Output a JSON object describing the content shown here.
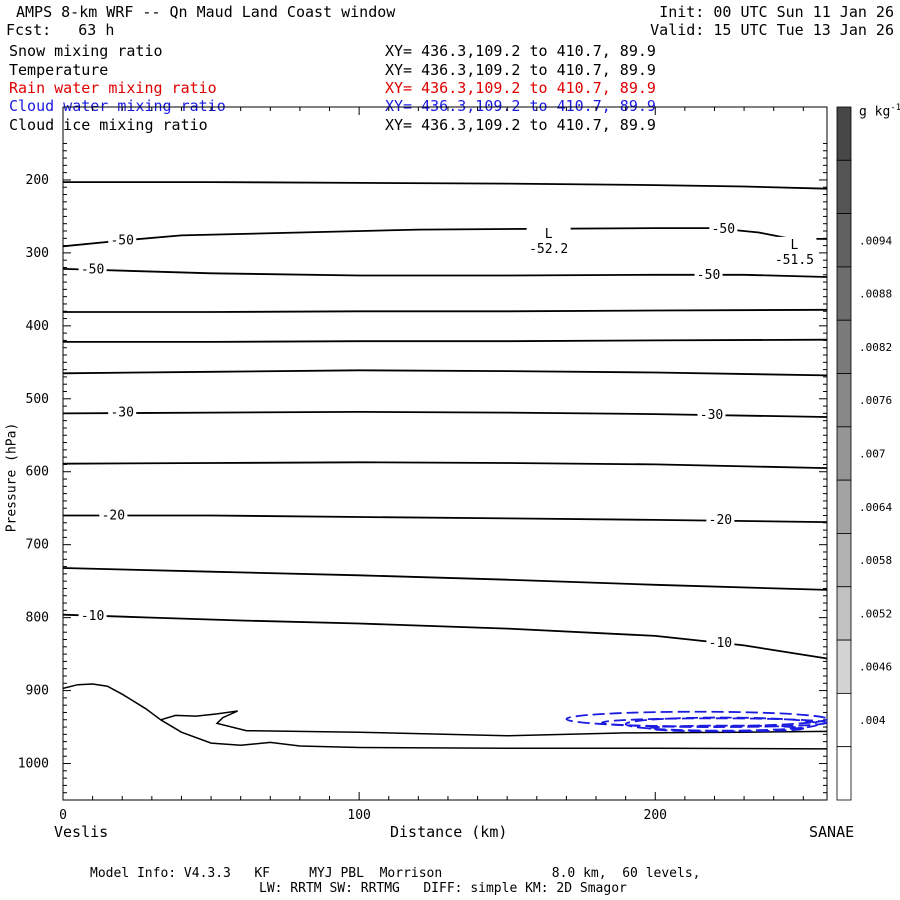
{
  "header": {
    "title": "AMPS 8-km WRF -- Qn Maud Land Coast window",
    "forecast": "Fcst:   63 h",
    "init": "Init: 00 UTC Sun 11 Jan 26",
    "valid": "Valid: 15 UTC Tue 13 Jan 26"
  },
  "fields": [
    {
      "name": "Snow mixing ratio",
      "xy": "XY= 436.3,109.2 to 410.7, 89.9",
      "color": "#000000"
    },
    {
      "name": "Temperature",
      "xy": "XY= 436.3,109.2 to 410.7, 89.9",
      "color": "#000000"
    },
    {
      "name": "Rain water mixing ratio",
      "xy": "XY= 436.3,109.2 to 410.7, 89.9",
      "color": "#e00000"
    },
    {
      "name": "Cloud water mixing ratio",
      "xy": "XY= 436.3,109.2 to 410.7, 89.9",
      "color": "#1a1ae0"
    },
    {
      "name": "Cloud ice mixing ratio",
      "xy": "XY= 436.3,109.2 to 410.7, 89.9",
      "color": "#000000"
    }
  ],
  "footer": {
    "model_line1": "Model Info: V4.3.3   KF     MYJ PBL  Morrison              8.0 km,  60 levels,",
    "model_line2": "LW: RRTM SW: RRTMG   DIFF: simple KM: 2D Smagor"
  },
  "chart_data": {
    "type": "contour",
    "xlabel": "Distance (km)",
    "ylabel": "Pressure (hPa)",
    "xlim": [
      0,
      258
    ],
    "ylim": [
      1050,
      100
    ],
    "x_ticks": [
      0,
      100,
      200
    ],
    "y_ticks": [
      200,
      300,
      400,
      500,
      600,
      700,
      800,
      900,
      1000
    ],
    "x_endpoints": {
      "left": "Veslis",
      "right": "SANAE"
    },
    "colorbar": {
      "unit": "g kg",
      "unit_exponent": "-1",
      "levels": [
        "",
        "",
        ".0094",
        ".0088",
        ".0082",
        ".0076",
        ".007",
        ".0064",
        ".0058",
        ".0052",
        ".0046",
        ".004",
        ""
      ],
      "colors": [
        "#474747",
        "#555555",
        "#616161",
        "#6d6d6d",
        "#7a7a7a",
        "#878787",
        "#959595",
        "#a3a3a3",
        "#b2b2b2",
        "#c2c2c2",
        "#d3d3d3",
        "#ffffff",
        "#ffffff"
      ]
    },
    "temperature_isotherms": [
      {
        "level": "",
        "points": [
          [
            0,
            203
          ],
          [
            50,
            203
          ],
          [
            100,
            204
          ],
          [
            150,
            205
          ],
          [
            200,
            207
          ],
          [
            230,
            209
          ],
          [
            258,
            212
          ]
        ]
      },
      {
        "level": "-50",
        "points": [
          [
            0,
            291
          ],
          [
            20,
            283
          ],
          [
            40,
            276
          ],
          [
            80,
            272
          ],
          [
            120,
            268
          ],
          [
            160,
            267
          ],
          [
            200,
            266
          ],
          [
            220,
            266
          ],
          [
            235,
            272
          ],
          [
            245,
            280
          ],
          [
            258,
            281
          ]
        ]
      },
      {
        "level": "-50",
        "points": [
          [
            0,
            322
          ],
          [
            50,
            328
          ],
          [
            100,
            331
          ],
          [
            150,
            331
          ],
          [
            200,
            330
          ],
          [
            230,
            330
          ],
          [
            258,
            333
          ]
        ]
      },
      {
        "level": "",
        "points": [
          [
            0,
            381
          ],
          [
            50,
            381
          ],
          [
            100,
            380
          ],
          [
            150,
            380
          ],
          [
            200,
            379
          ],
          [
            258,
            378
          ]
        ]
      },
      {
        "level": "",
        "points": [
          [
            0,
            422
          ],
          [
            50,
            422
          ],
          [
            100,
            421
          ],
          [
            150,
            421
          ],
          [
            200,
            420
          ],
          [
            258,
            419
          ]
        ]
      },
      {
        "level": "",
        "points": [
          [
            0,
            465
          ],
          [
            50,
            463
          ],
          [
            100,
            461
          ],
          [
            150,
            462
          ],
          [
            200,
            464
          ],
          [
            258,
            468
          ]
        ]
      },
      {
        "level": "-30",
        "points": [
          [
            0,
            520
          ],
          [
            50,
            519
          ],
          [
            100,
            518
          ],
          [
            150,
            519
          ],
          [
            200,
            521
          ],
          [
            258,
            525
          ]
        ]
      },
      {
        "level": "",
        "points": [
          [
            0,
            589
          ],
          [
            50,
            588
          ],
          [
            100,
            587
          ],
          [
            150,
            588
          ],
          [
            200,
            590
          ],
          [
            258,
            595
          ]
        ]
      },
      {
        "level": "-20",
        "points": [
          [
            0,
            660
          ],
          [
            50,
            660
          ],
          [
            100,
            662
          ],
          [
            150,
            664
          ],
          [
            200,
            666
          ],
          [
            258,
            669
          ]
        ]
      },
      {
        "level": "",
        "points": [
          [
            0,
            732
          ],
          [
            50,
            737
          ],
          [
            100,
            742
          ],
          [
            150,
            748
          ],
          [
            200,
            755
          ],
          [
            258,
            762
          ]
        ]
      },
      {
        "level": "-10",
        "points": [
          [
            0,
            796
          ],
          [
            30,
            800
          ],
          [
            60,
            804
          ],
          [
            100,
            808
          ],
          [
            150,
            815
          ],
          [
            200,
            825
          ],
          [
            230,
            838
          ],
          [
            258,
            856
          ]
        ]
      }
    ],
    "temperature_labels": [
      {
        "text": "-50",
        "x": 20,
        "p": 283
      },
      {
        "text": "-50",
        "x": 10,
        "p": 323
      },
      {
        "text": "-50",
        "x": 223,
        "p": 267
      },
      {
        "text": "-50",
        "x": 218,
        "p": 330
      },
      {
        "text": "-30",
        "x": 20,
        "p": 519
      },
      {
        "text": "-30",
        "x": 219,
        "p": 522
      },
      {
        "text": "-20",
        "x": 17,
        "p": 660
      },
      {
        "text": "-20",
        "x": 222,
        "p": 666
      },
      {
        "text": "-10",
        "x": 10,
        "p": 798
      },
      {
        "text": "-10",
        "x": 222,
        "p": 835
      }
    ],
    "extrema": [
      {
        "marker": "L",
        "value": "-52.2",
        "x": 164,
        "p": 285
      },
      {
        "marker": "L",
        "value": "-51.5",
        "x": 247,
        "p": 300
      }
    ],
    "terrain_outline": [
      [
        0,
        897
      ],
      [
        5,
        892
      ],
      [
        10,
        891
      ],
      [
        15,
        894
      ],
      [
        20,
        905
      ],
      [
        28,
        925
      ],
      [
        33,
        940
      ],
      [
        38,
        934
      ],
      [
        45,
        935
      ],
      [
        52,
        932
      ],
      [
        59,
        928
      ],
      [
        54,
        937
      ],
      [
        52,
        945
      ],
      [
        62,
        955
      ],
      [
        100,
        957
      ],
      [
        150,
        962
      ],
      [
        190,
        958
      ],
      [
        230,
        957
      ],
      [
        258,
        956
      ]
    ],
    "terrain_lower": [
      [
        33,
        940
      ],
      [
        40,
        957
      ],
      [
        50,
        972
      ],
      [
        60,
        975
      ],
      [
        70,
        971
      ],
      [
        80,
        976
      ],
      [
        100,
        978
      ],
      [
        150,
        979
      ],
      [
        200,
        979
      ],
      [
        258,
        980
      ]
    ],
    "cloud_water_contours": [
      {
        "x": [
          170,
          258
        ],
        "p_center": 939,
        "p_half": 10
      },
      {
        "x": [
          182,
          258
        ],
        "p_center": 944,
        "p_half": 6
      },
      {
        "x": [
          190,
          255
        ],
        "p_center": 946,
        "p_half": 9
      },
      {
        "x": [
          198,
          250
        ],
        "p_center": 952,
        "p_half": 4
      }
    ]
  }
}
